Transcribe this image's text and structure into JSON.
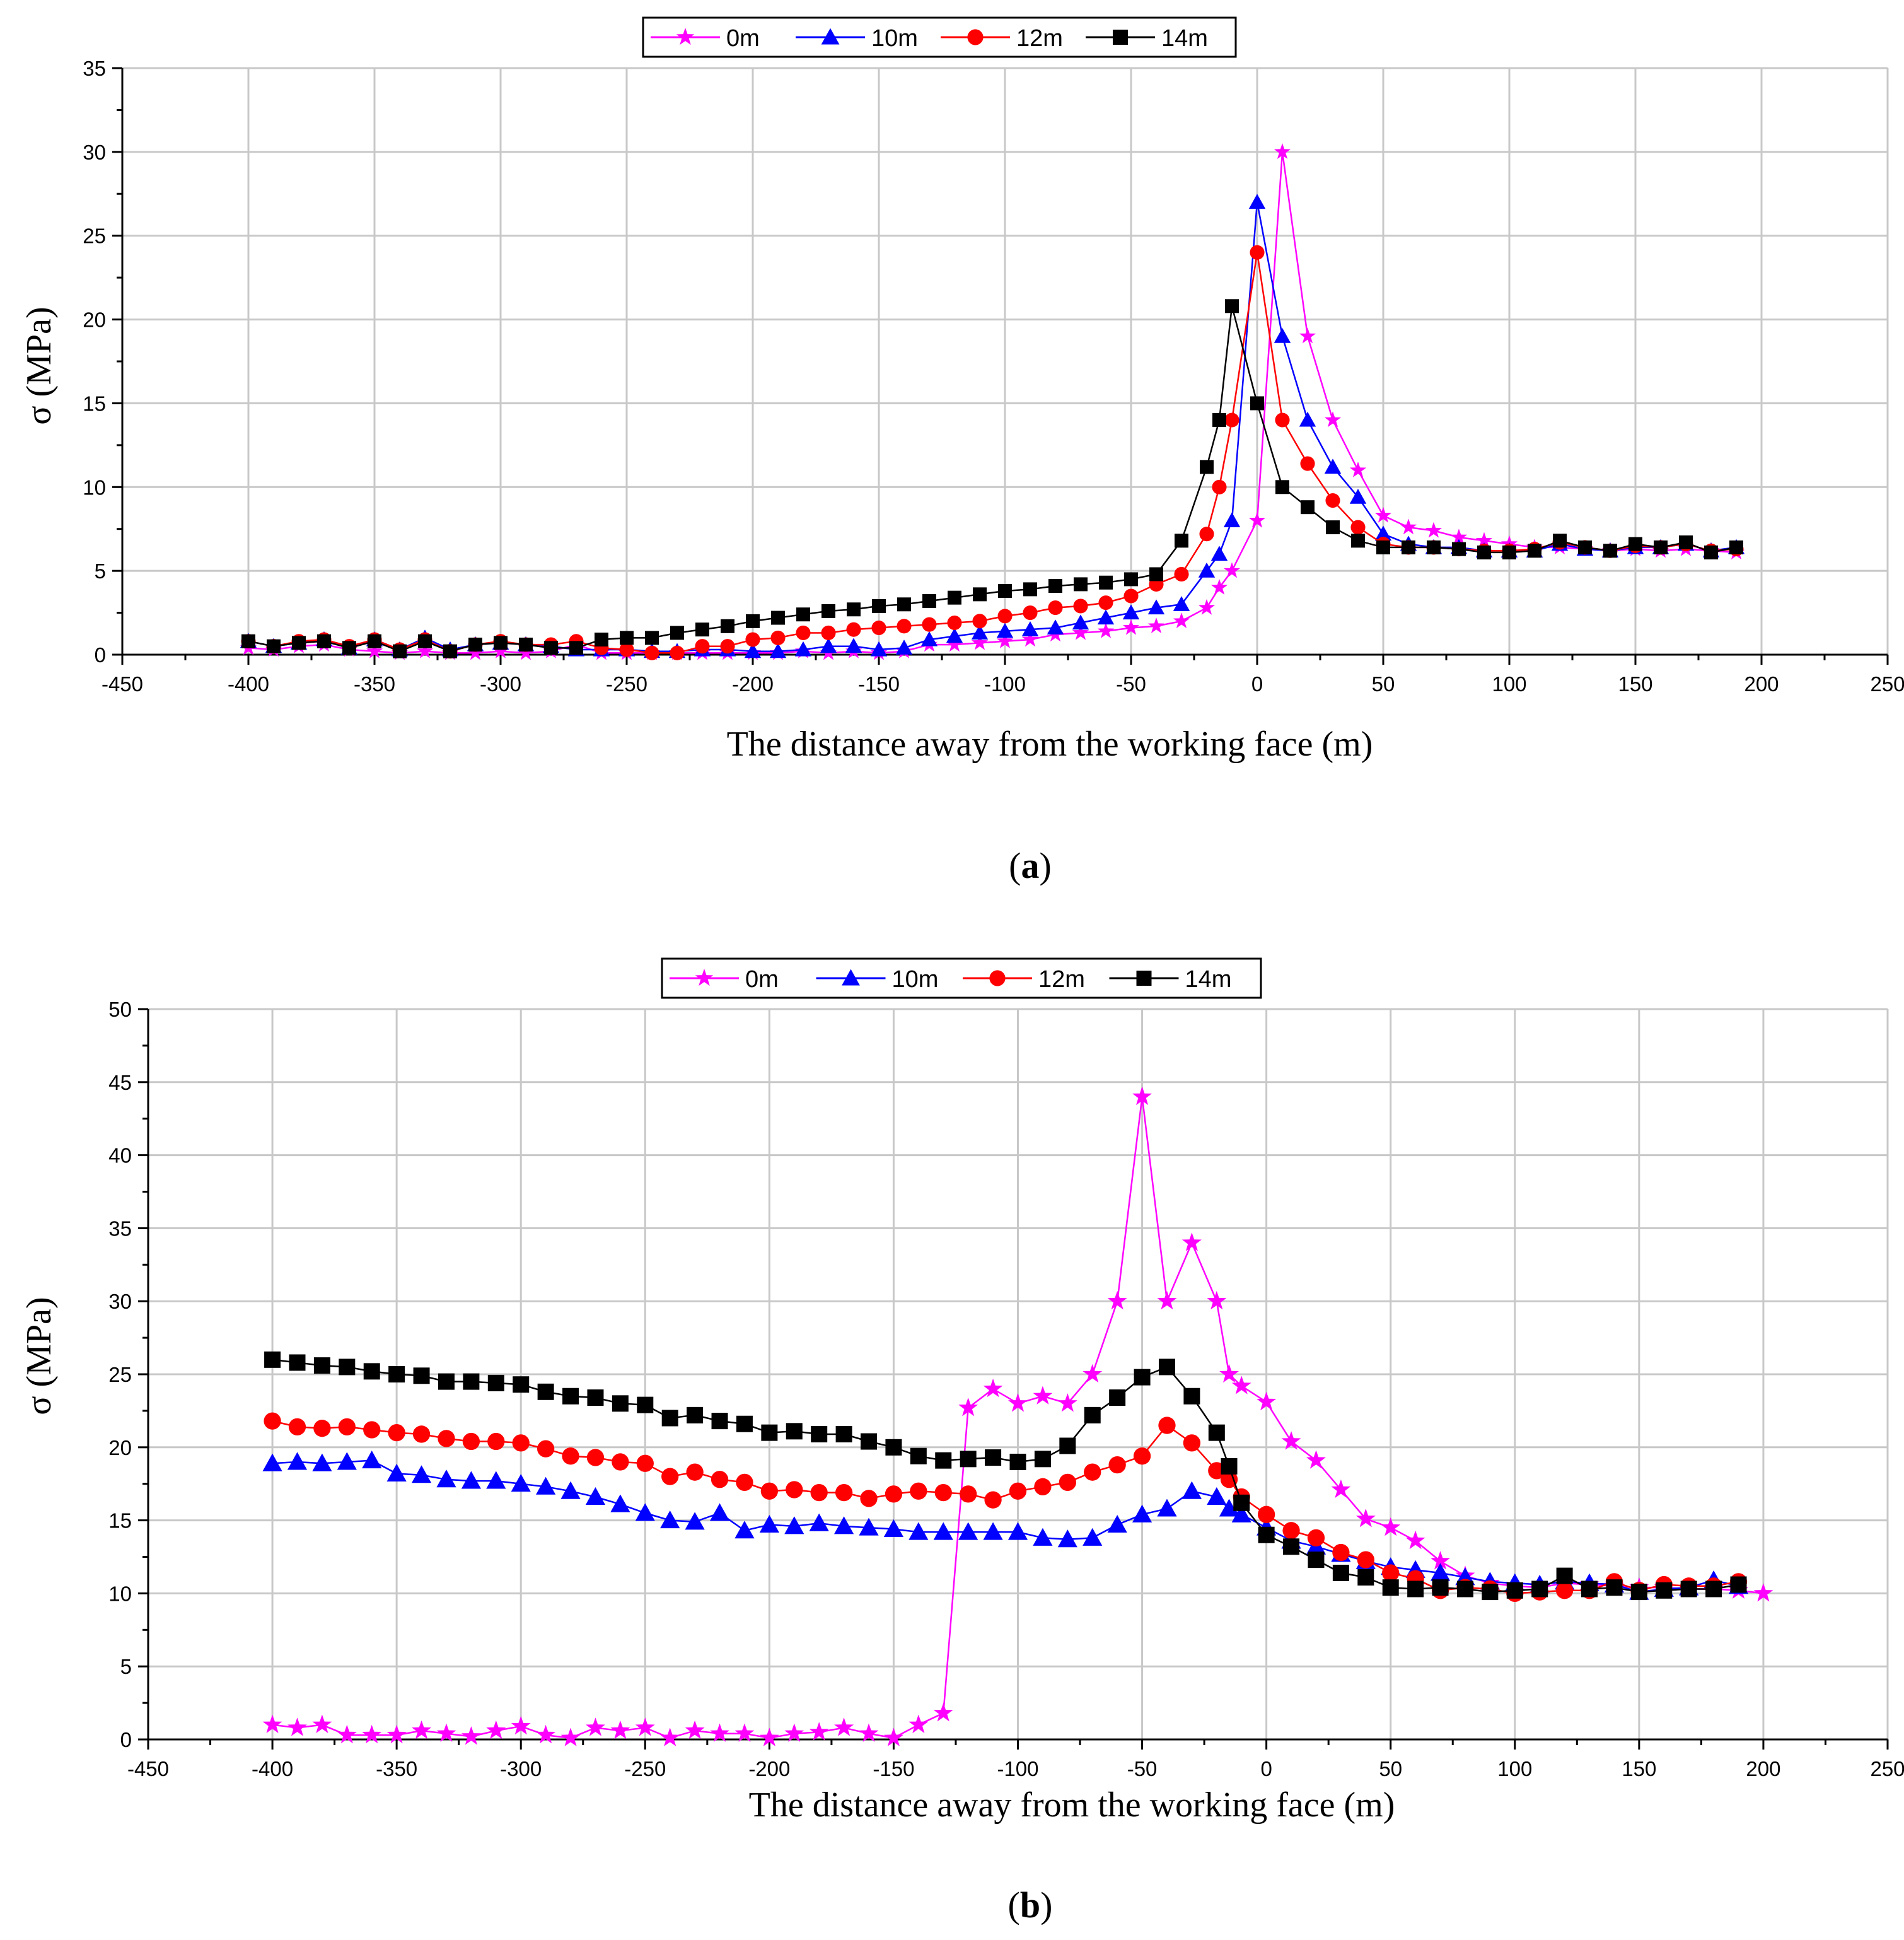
{
  "chart_data": [
    {
      "type": "line",
      "caption": "a",
      "title": "",
      "xlabel": "The distance away from the working face (m)",
      "ylabel": "σ (MPa)",
      "xlim": [
        -450,
        250
      ],
      "ylim": [
        0,
        35
      ],
      "xticks": [
        -450,
        -400,
        -350,
        -300,
        -250,
        -200,
        -150,
        -100,
        -50,
        0,
        50,
        100,
        150,
        200,
        250
      ],
      "yticks": [
        0,
        5,
        10,
        15,
        20,
        25,
        30,
        35
      ],
      "grid": true,
      "legend_position": "top-center",
      "series": [
        {
          "name": "0m",
          "color": "#ff00ff",
          "marker": "star",
          "x": [
            -400,
            -390,
            -380,
            -370,
            -360,
            -350,
            -340,
            -330,
            -320,
            -310,
            -300,
            -290,
            -280,
            -270,
            -260,
            -250,
            -240,
            -230,
            -220,
            -210,
            -200,
            -190,
            -180,
            -170,
            -160,
            -150,
            -140,
            -130,
            -120,
            -110,
            -100,
            -90,
            -80,
            -70,
            -60,
            -50,
            -40,
            -30,
            -20,
            -15,
            -10,
            0,
            10,
            20,
            30,
            40,
            50,
            60,
            70,
            80,
            90,
            100,
            110,
            120,
            130,
            140,
            150,
            160,
            170,
            180,
            190
          ],
          "y": [
            0.4,
            0.3,
            0.5,
            0.6,
            0.3,
            0.2,
            0.1,
            0.2,
            0.1,
            0.1,
            0.2,
            0.1,
            0.2,
            0.6,
            0.1,
            0.1,
            0.1,
            0.1,
            0.1,
            0.1,
            0.1,
            0.1,
            0.2,
            0.1,
            0.2,
            0.1,
            0.2,
            0.6,
            0.6,
            0.7,
            0.8,
            0.9,
            1.2,
            1.3,
            1.4,
            1.6,
            1.7,
            2,
            2.8,
            4,
            5,
            8,
            30,
            19,
            14,
            11,
            8.3,
            7.6,
            7.4,
            7,
            6.8,
            6.6,
            6.4,
            6.4,
            6.3,
            6.2,
            6.3,
            6.2,
            6.3,
            6.2,
            6.1
          ]
        },
        {
          "name": "10m",
          "color": "#0000ff",
          "marker": "triangle",
          "x": [
            -400,
            -390,
            -380,
            -370,
            -360,
            -350,
            -340,
            -330,
            -320,
            -310,
            -300,
            -290,
            -280,
            -270,
            -260,
            -250,
            -240,
            -230,
            -220,
            -210,
            -200,
            -190,
            -180,
            -170,
            -160,
            -150,
            -140,
            -130,
            -120,
            -110,
            -100,
            -90,
            -80,
            -70,
            -60,
            -50,
            -40,
            -30,
            -20,
            -15,
            -10,
            0,
            10,
            20,
            30,
            40,
            50,
            60,
            70,
            80,
            90,
            100,
            110,
            120,
            130,
            140,
            150,
            160,
            170,
            180,
            190
          ],
          "y": [
            0.8,
            0.5,
            0.7,
            0.9,
            0.4,
            0.9,
            0.3,
            1,
            0.3,
            0.6,
            0.7,
            0.6,
            0.5,
            0.3,
            0.3,
            0.3,
            0.2,
            0.2,
            0.3,
            0.3,
            0.2,
            0.2,
            0.3,
            0.5,
            0.5,
            0.3,
            0.4,
            0.9,
            1.1,
            1.3,
            1.4,
            1.5,
            1.6,
            1.9,
            2.2,
            2.5,
            2.8,
            3,
            5,
            6,
            8,
            27,
            19,
            14,
            11.2,
            9.4,
            7.2,
            6.6,
            6.4,
            6.4,
            6.2,
            6.2,
            6.2,
            6.6,
            6.3,
            6.2,
            6.4,
            6.4,
            6.6,
            6.2,
            6.4
          ]
        },
        {
          "name": "12m",
          "color": "#ff0000",
          "marker": "circle",
          "x": [
            -400,
            -390,
            -380,
            -370,
            -360,
            -350,
            -340,
            -330,
            -320,
            -310,
            -300,
            -290,
            -280,
            -270,
            -260,
            -250,
            -240,
            -230,
            -220,
            -210,
            -200,
            -190,
            -180,
            -170,
            -160,
            -150,
            -140,
            -130,
            -120,
            -110,
            -100,
            -90,
            -80,
            -70,
            -60,
            -50,
            -40,
            -30,
            -20,
            -15,
            -10,
            0,
            10,
            20,
            30,
            40,
            50,
            60,
            70,
            80,
            90,
            100,
            110,
            120,
            130,
            140,
            150,
            160,
            170,
            180,
            190
          ],
          "y": [
            0.8,
            0.5,
            0.8,
            0.9,
            0.5,
            0.9,
            0.3,
            0.9,
            0.2,
            0.6,
            0.8,
            0.6,
            0.6,
            0.8,
            0.4,
            0.3,
            0.1,
            0.1,
            0.5,
            0.5,
            0.9,
            1,
            1.3,
            1.3,
            1.5,
            1.6,
            1.7,
            1.8,
            1.9,
            2,
            2.3,
            2.5,
            2.8,
            2.9,
            3.1,
            3.5,
            4.2,
            4.8,
            7.2,
            10,
            14,
            24,
            14,
            11.4,
            9.2,
            7.6,
            6.6,
            6.4,
            6.4,
            6.3,
            6.2,
            6.2,
            6.3,
            6.7,
            6.4,
            6.2,
            6.5,
            6.4,
            6.6,
            6.2,
            6.3
          ]
        },
        {
          "name": "14m",
          "color": "#000000",
          "marker": "square",
          "x": [
            -400,
            -390,
            -380,
            -370,
            -360,
            -350,
            -340,
            -330,
            -320,
            -310,
            -300,
            -290,
            -280,
            -270,
            -260,
            -250,
            -240,
            -230,
            -220,
            -210,
            -200,
            -190,
            -180,
            -170,
            -160,
            -150,
            -140,
            -130,
            -120,
            -110,
            -100,
            -90,
            -80,
            -70,
            -60,
            -50,
            -40,
            -30,
            -20,
            -15,
            -10,
            0,
            10,
            20,
            30,
            40,
            50,
            60,
            70,
            80,
            90,
            100,
            110,
            120,
            130,
            140,
            150,
            160,
            170,
            180,
            190
          ],
          "y": [
            0.8,
            0.5,
            0.7,
            0.8,
            0.4,
            0.8,
            0.2,
            0.8,
            0.2,
            0.6,
            0.7,
            0.6,
            0.4,
            0.4,
            0.9,
            1,
            1,
            1.3,
            1.5,
            1.7,
            2,
            2.2,
            2.4,
            2.6,
            2.7,
            2.9,
            3,
            3.2,
            3.4,
            3.6,
            3.8,
            3.9,
            4.1,
            4.2,
            4.3,
            4.5,
            4.8,
            6.8,
            11.2,
            14,
            20.8,
            15,
            10,
            8.8,
            7.6,
            6.8,
            6.4,
            6.4,
            6.4,
            6.3,
            6.1,
            6.1,
            6.2,
            6.8,
            6.4,
            6.2,
            6.6,
            6.4,
            6.7,
            6.1,
            6.4
          ]
        }
      ]
    },
    {
      "type": "line",
      "caption": "b",
      "title": "",
      "xlabel": "The distance away from the working face (m)",
      "ylabel": "σ (MPa)",
      "xlim": [
        -450,
        250
      ],
      "ylim": [
        0,
        50
      ],
      "xticks": [
        -450,
        -400,
        -350,
        -300,
        -250,
        -200,
        -150,
        -100,
        -50,
        0,
        50,
        100,
        150,
        200,
        250
      ],
      "yticks": [
        0,
        5,
        10,
        15,
        20,
        25,
        30,
        35,
        40,
        45,
        50
      ],
      "grid": true,
      "legend_position": "top-center",
      "series": [
        {
          "name": "0m",
          "color": "#ff00ff",
          "marker": "star",
          "x": [
            -400,
            -390,
            -380,
            -370,
            -360,
            -350,
            -340,
            -330,
            -320,
            -310,
            -300,
            -290,
            -280,
            -270,
            -260,
            -250,
            -240,
            -230,
            -220,
            -210,
            -200,
            -190,
            -180,
            -170,
            -160,
            -150,
            -140,
            -130,
            -120,
            -110,
            -100,
            -90,
            -80,
            -70,
            -60,
            -50,
            -40,
            -30,
            -20,
            -15,
            -10,
            0,
            10,
            20,
            30,
            40,
            50,
            60,
            70,
            80,
            90,
            100,
            110,
            120,
            130,
            140,
            150,
            160,
            170,
            180,
            190,
            200
          ],
          "y": [
            1,
            0.8,
            1,
            0.3,
            0.3,
            0.3,
            0.6,
            0.4,
            0.2,
            0.6,
            0.9,
            0.3,
            0.1,
            0.8,
            0.6,
            0.8,
            0.1,
            0.6,
            0.4,
            0.4,
            0.1,
            0.4,
            0.5,
            0.8,
            0.4,
            0.1,
            1,
            1.8,
            22.7,
            24,
            23,
            23.5,
            23,
            25,
            30,
            44,
            30,
            34,
            30,
            25,
            24.2,
            23.1,
            20.4,
            19.1,
            17.1,
            15.1,
            14.5,
            13.6,
            12.2,
            11.2,
            10.7,
            10.5,
            10.4,
            10.7,
            10.6,
            10.5,
            10.4,
            10.4,
            10.3,
            10.3,
            10.2,
            10
          ]
        },
        {
          "name": "10m",
          "color": "#0000ff",
          "marker": "triangle",
          "x": [
            -400,
            -390,
            -380,
            -370,
            -360,
            -350,
            -340,
            -330,
            -320,
            -310,
            -300,
            -290,
            -280,
            -270,
            -260,
            -250,
            -240,
            -230,
            -220,
            -210,
            -200,
            -190,
            -180,
            -170,
            -160,
            -150,
            -140,
            -130,
            -120,
            -110,
            -100,
            -90,
            -80,
            -70,
            -60,
            -50,
            -40,
            -30,
            -20,
            -15,
            -10,
            0,
            10,
            20,
            30,
            40,
            50,
            60,
            70,
            80,
            90,
            100,
            110,
            120,
            130,
            140,
            150,
            160,
            170,
            180,
            190
          ],
          "y": [
            18.9,
            19,
            18.9,
            19,
            19.1,
            18.2,
            18.1,
            17.8,
            17.7,
            17.7,
            17.5,
            17.3,
            17,
            16.6,
            16.1,
            15.5,
            15,
            14.9,
            15.5,
            14.3,
            14.7,
            14.6,
            14.8,
            14.6,
            14.5,
            14.4,
            14.2,
            14.2,
            14.2,
            14.2,
            14.2,
            13.8,
            13.7,
            13.8,
            14.7,
            15.4,
            15.8,
            17,
            16.6,
            15.8,
            15.4,
            14.5,
            13.6,
            13.2,
            12.7,
            12.2,
            11.8,
            11.6,
            11.4,
            11.1,
            10.8,
            10.7,
            10.6,
            10.8,
            10.7,
            10.6,
            10.1,
            10.3,
            10.4,
            10.9,
            10.5
          ]
        },
        {
          "name": "12m",
          "color": "#ff0000",
          "marker": "circle",
          "x": [
            -400,
            -390,
            -380,
            -370,
            -360,
            -350,
            -340,
            -330,
            -320,
            -310,
            -300,
            -290,
            -280,
            -270,
            -260,
            -250,
            -240,
            -230,
            -220,
            -210,
            -200,
            -190,
            -180,
            -170,
            -160,
            -150,
            -140,
            -130,
            -120,
            -110,
            -100,
            -90,
            -80,
            -70,
            -60,
            -50,
            -40,
            -30,
            -20,
            -15,
            -10,
            0,
            10,
            20,
            30,
            40,
            50,
            60,
            70,
            80,
            90,
            100,
            110,
            120,
            130,
            140,
            150,
            160,
            170,
            180,
            190
          ],
          "y": [
            21.8,
            21.4,
            21.3,
            21.4,
            21.2,
            21,
            20.9,
            20.6,
            20.4,
            20.4,
            20.3,
            19.9,
            19.4,
            19.3,
            19,
            18.9,
            18,
            18.3,
            17.8,
            17.6,
            17,
            17.1,
            16.9,
            16.9,
            16.5,
            16.8,
            17,
            16.9,
            16.8,
            16.4,
            17,
            17.3,
            17.6,
            18.3,
            18.8,
            19.4,
            21.5,
            20.3,
            18.4,
            17.8,
            16.6,
            15.4,
            14.3,
            13.8,
            12.8,
            12.3,
            11.4,
            11,
            10.2,
            10.4,
            10.3,
            10,
            10.1,
            10.2,
            10.2,
            10.8,
            10.2,
            10.6,
            10.5,
            10.5,
            10.8
          ]
        },
        {
          "name": "14m",
          "color": "#000000",
          "marker": "square",
          "x": [
            -400,
            -390,
            -380,
            -370,
            -360,
            -350,
            -340,
            -330,
            -320,
            -310,
            -300,
            -290,
            -280,
            -270,
            -260,
            -250,
            -240,
            -230,
            -220,
            -210,
            -200,
            -190,
            -180,
            -170,
            -160,
            -150,
            -140,
            -130,
            -120,
            -110,
            -100,
            -90,
            -80,
            -70,
            -60,
            -50,
            -40,
            -30,
            -20,
            -15,
            -10,
            0,
            10,
            20,
            30,
            40,
            50,
            60,
            70,
            80,
            90,
            100,
            110,
            120,
            130,
            140,
            150,
            160,
            170,
            180,
            190
          ],
          "y": [
            26,
            25.8,
            25.6,
            25.5,
            25.2,
            25,
            24.9,
            24.5,
            24.5,
            24.4,
            24.3,
            23.8,
            23.5,
            23.4,
            23,
            22.9,
            22,
            22.2,
            21.8,
            21.6,
            21,
            21.1,
            20.9,
            20.9,
            20.4,
            20,
            19.4,
            19.1,
            19.2,
            19.3,
            19,
            19.2,
            20.1,
            22.2,
            23.4,
            24.8,
            25.5,
            23.5,
            21,
            18.7,
            16.2,
            14,
            13.2,
            12.3,
            11.4,
            11.1,
            10.4,
            10.3,
            10.4,
            10.3,
            10.1,
            10.2,
            10.3,
            11.2,
            10.3,
            10.4,
            10.1,
            10.2,
            10.3,
            10.3,
            10.6
          ]
        }
      ]
    }
  ]
}
